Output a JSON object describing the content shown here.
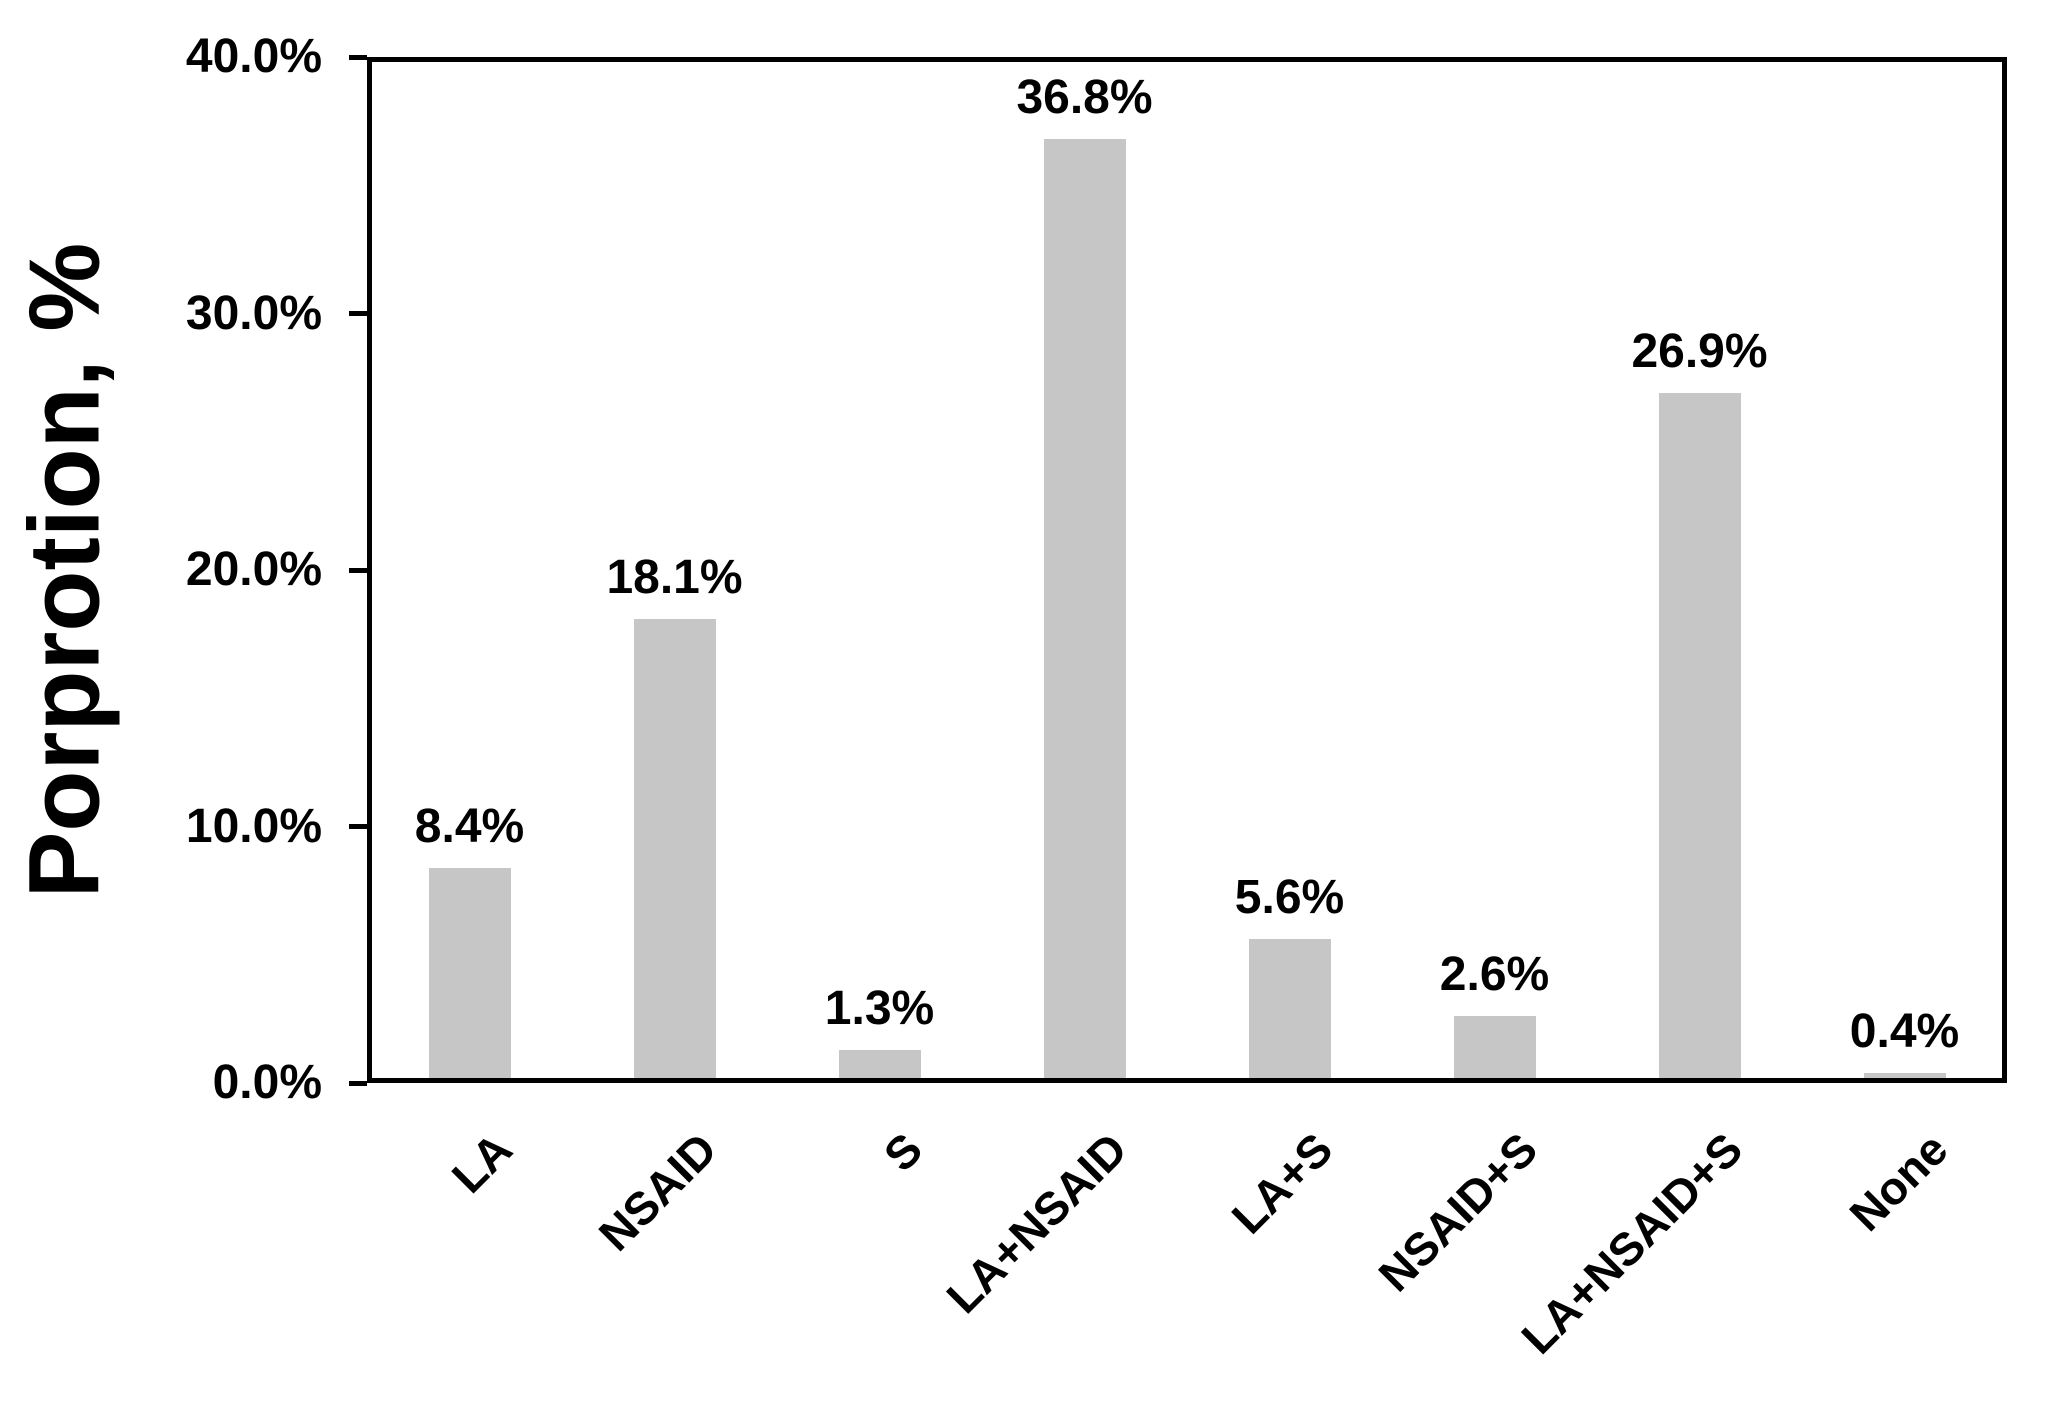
{
  "chart_data": {
    "type": "bar",
    "title": "",
    "xlabel": "",
    "ylabel": "Porprotion, %",
    "categories": [
      "LA",
      "NSAID",
      "S",
      "LA+NSAID",
      "LA+S",
      "NSAID+S",
      "LA+NSAID+S",
      "None"
    ],
    "values": [
      8.4,
      18.1,
      1.3,
      36.8,
      5.6,
      2.6,
      26.9,
      0.4
    ],
    "value_labels": [
      "8.4%",
      "18.1%",
      "1.3%",
      "36.8%",
      "5.6%",
      "2.6%",
      "26.9%",
      "0.4%"
    ],
    "y_ticks": [
      {
        "value": 0,
        "label": "0.0%"
      },
      {
        "value": 10,
        "label": "10.0%"
      },
      {
        "value": 20,
        "label": "20.0%"
      },
      {
        "value": 30,
        "label": "30.0%"
      },
      {
        "value": 40,
        "label": "40.0%"
      }
    ],
    "ylim": [
      0,
      40
    ],
    "grid": false,
    "legend": null,
    "x_label_rotation_deg": 45,
    "bar_color": "#c6c6c6",
    "axis_color": "#000000",
    "text_color": "#000000",
    "plot_background": "#ffffff"
  }
}
